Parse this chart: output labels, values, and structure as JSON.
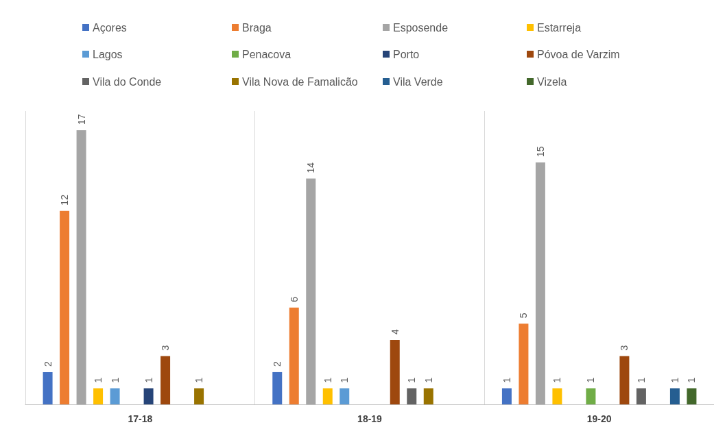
{
  "chart_data": {
    "type": "bar",
    "categories": [
      "17-18",
      "18-19",
      "19-20"
    ],
    "series": [
      {
        "name": "Açores",
        "color": "#4472c4",
        "values": [
          2,
          2,
          1
        ]
      },
      {
        "name": "Braga",
        "color": "#ed7d31",
        "values": [
          12,
          6,
          5
        ]
      },
      {
        "name": "Esposende",
        "color": "#a5a5a5",
        "values": [
          17,
          14,
          15
        ]
      },
      {
        "name": "Estarreja",
        "color": "#ffc000",
        "values": [
          1,
          1,
          1
        ]
      },
      {
        "name": "Lagos",
        "color": "#5b9bd5",
        "values": [
          1,
          1,
          null
        ]
      },
      {
        "name": "Penacova",
        "color": "#70ad47",
        "values": [
          null,
          null,
          1
        ]
      },
      {
        "name": "Porto",
        "color": "#264478",
        "values": [
          1,
          null,
          null
        ]
      },
      {
        "name": "Póvoa de Varzim",
        "color": "#9e480e",
        "values": [
          3,
          4,
          3
        ]
      },
      {
        "name": "Vila do Conde",
        "color": "#636363",
        "values": [
          null,
          1,
          1
        ]
      },
      {
        "name": "Vila Nova de Famalicão",
        "color": "#997300",
        "values": [
          1,
          1,
          null
        ]
      },
      {
        "name": "Vila Verde",
        "color": "#255e91",
        "values": [
          null,
          null,
          1
        ]
      },
      {
        "name": "Vizela",
        "color": "#43682b",
        "values": [
          null,
          null,
          1
        ]
      }
    ],
    "data_labels": true,
    "grid": "x",
    "legend": "top"
  }
}
